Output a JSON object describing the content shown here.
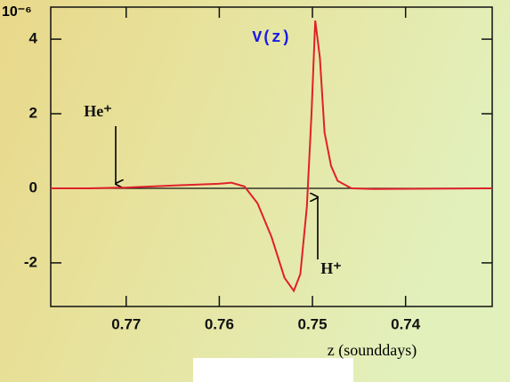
{
  "chart_data": {
    "type": "line",
    "y_multiplier": "10⁻⁶",
    "xlabel": "z (sounddays)",
    "annotations": [
      "V(z)",
      "He⁺",
      "H⁺"
    ],
    "x": [
      0.7781,
      0.774,
      0.77,
      0.7645,
      0.7601,
      0.7587,
      0.7573,
      0.7559,
      0.7544,
      0.753,
      0.752,
      0.7513,
      0.7506,
      0.7501,
      0.7497,
      0.7492,
      0.7487,
      0.748,
      0.7473,
      0.7458,
      0.7434,
      0.7307
    ],
    "series": [
      {
        "name": "V(z)",
        "color": "#e0202a",
        "values": [
          0,
          0,
          0.02,
          0.08,
          0.12,
          0.15,
          0.05,
          -0.4,
          -1.3,
          -2.4,
          -2.75,
          -2.3,
          -0.5,
          2.0,
          4.5,
          3.5,
          1.5,
          0.6,
          0.2,
          0.0,
          -0.02,
          0
        ]
      }
    ],
    "xlim": [
      0.7781,
      0.7307
    ],
    "xticks": [
      0.77,
      0.76,
      0.75,
      0.74
    ],
    "ylim": [
      -3.17,
      4.86
    ],
    "yticks": [
      -2,
      0,
      2,
      4
    ],
    "zero_line": true
  }
}
